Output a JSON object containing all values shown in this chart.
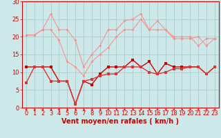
{
  "x": [
    0,
    1,
    2,
    3,
    4,
    5,
    6,
    7,
    8,
    9,
    10,
    11,
    12,
    13,
    14,
    15,
    16,
    17,
    18,
    19,
    20,
    21,
    22,
    23
  ],
  "line_rafales_max": [
    20.5,
    20.5,
    22,
    26.5,
    22,
    22,
    19,
    11.5,
    15,
    17.5,
    22,
    22,
    24.5,
    25,
    26.5,
    22,
    24.5,
    22,
    20,
    20,
    20,
    17.5,
    19.5,
    19.5
  ],
  "line_rafales_min": [
    20.5,
    20.5,
    22,
    22,
    19,
    13,
    11.5,
    9,
    13,
    15,
    17,
    20,
    22,
    22,
    25,
    22,
    22,
    22,
    19.5,
    19.5,
    19.5,
    20,
    17.5,
    19.5
  ],
  "line_vent_max": [
    11.5,
    11.5,
    11.5,
    11.5,
    7.5,
    7.5,
    1,
    7.5,
    6.5,
    9.5,
    11.5,
    11.5,
    11.5,
    13.5,
    11.5,
    13,
    9.5,
    12.5,
    11.5,
    11.5,
    11.5,
    11.5,
    9.5,
    11.5
  ],
  "line_vent_min": [
    7,
    11.5,
    11.5,
    7.5,
    7.5,
    7.5,
    1,
    7.5,
    8,
    9,
    9.5,
    9.5,
    11.5,
    11.5,
    11.5,
    10,
    9.5,
    10,
    11,
    11,
    11.5,
    11.5,
    9.5,
    11.5
  ],
  "bg_color": "#cce8e8",
  "grid_color": "#aacccc",
  "line_pink_color": "#ff8888",
  "line_dark_color": "#cc0000",
  "line_medium_color": "#dd3333",
  "xlabel": "Vent moyen/en rafales ( km/h )",
  "xlabel_fontsize": 7,
  "tick_fontsize": 6,
  "ylim": [
    0,
    30
  ],
  "xlim": [
    -0.5,
    23.5
  ],
  "yticks": [
    0,
    5,
    10,
    15,
    20,
    25,
    30
  ],
  "xticks": [
    0,
    1,
    2,
    3,
    4,
    5,
    6,
    7,
    8,
    9,
    10,
    11,
    12,
    13,
    14,
    15,
    16,
    17,
    18,
    19,
    20,
    21,
    22,
    23
  ],
  "spine_color": "#cc0000",
  "arrow_angles": [
    45,
    0,
    45,
    0,
    45,
    0,
    0,
    0,
    0,
    0,
    45,
    0,
    45,
    0,
    45,
    0,
    45,
    0,
    45,
    0,
    45,
    45,
    45,
    45
  ]
}
